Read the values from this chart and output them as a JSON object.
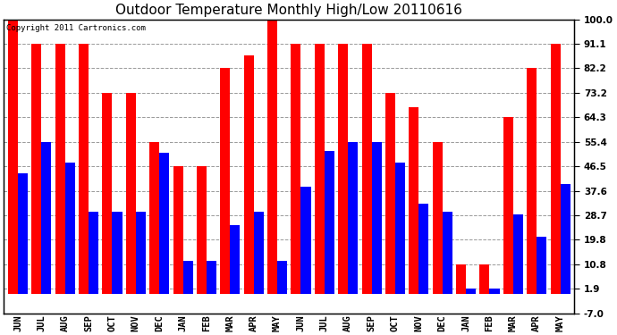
{
  "title": "Outdoor Temperature Monthly High/Low 20110616",
  "copyright": "Copyright 2011 Cartronics.com",
  "months": [
    "JUN",
    "JUL",
    "AUG",
    "SEP",
    "OCT",
    "NOV",
    "DEC",
    "JAN",
    "FEB",
    "MAR",
    "APR",
    "MAY",
    "JUN",
    "JUL",
    "AUG",
    "SEP",
    "OCT",
    "NOV",
    "DEC",
    "JAN",
    "FEB",
    "MAR",
    "APR",
    "MAY"
  ],
  "highs": [
    100.0,
    91.1,
    91.1,
    91.1,
    73.2,
    73.2,
    55.4,
    46.5,
    46.5,
    82.2,
    87.0,
    100.0,
    91.1,
    91.1,
    91.1,
    91.1,
    73.2,
    68.0,
    55.4,
    10.8,
    10.8,
    64.3,
    82.2,
    91.1
  ],
  "lows": [
    44.0,
    55.4,
    48.0,
    30.0,
    30.0,
    30.0,
    51.5,
    12.0,
    12.0,
    25.0,
    30.0,
    12.0,
    39.0,
    52.0,
    55.4,
    55.4,
    48.0,
    33.0,
    30.0,
    1.9,
    1.9,
    29.0,
    21.0,
    40.0
  ],
  "yticks": [
    -7.0,
    1.9,
    10.8,
    19.8,
    28.7,
    37.6,
    46.5,
    55.4,
    64.3,
    73.2,
    82.2,
    91.1,
    100.0
  ],
  "ymin": -7.0,
  "ymax": 100.0,
  "bar_color_high": "#ff0000",
  "bar_color_low": "#0000ff",
  "background_color": "#ffffff",
  "grid_color": "#999999",
  "title_fontsize": 11,
  "tick_fontsize": 7.5,
  "copyright_fontsize": 6.5
}
